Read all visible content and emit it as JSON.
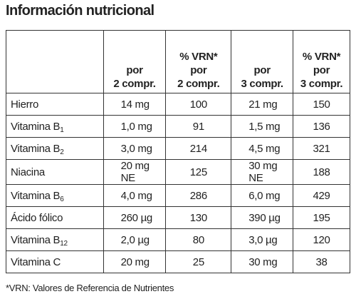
{
  "title": "Información nutricional",
  "table": {
    "header": [
      [
        "por",
        "2 compr."
      ],
      [
        "% VRN*",
        "por",
        "2 compr."
      ],
      [
        "por",
        "3 compr."
      ],
      [
        "% VRN*",
        "por",
        "3 compr."
      ]
    ],
    "rows": [
      [
        {
          "text": "Hierro"
        },
        "14 mg",
        "100",
        "21 mg",
        "150"
      ],
      [
        {
          "text": "Vitamina B",
          "sub": "1"
        },
        "1,0 mg",
        "91",
        "1,5 mg",
        "136"
      ],
      [
        {
          "text": "Vitamina B",
          "sub": "2"
        },
        "3,0 mg",
        "214",
        "4,5 mg",
        "321"
      ],
      [
        {
          "text": "Niacina"
        },
        "20 mg NE",
        "125",
        "30 mg NE",
        "188"
      ],
      [
        {
          "text": "Vitamina B",
          "sub": "6"
        },
        "4,0 mg",
        "286",
        "6,0 mg",
        "429"
      ],
      [
        {
          "text": "Ácido fólico"
        },
        "260 µg",
        "130",
        "390 µg",
        "195"
      ],
      [
        {
          "text": "Vitamina B",
          "sub": "12"
        },
        "2,0 µg",
        "80",
        "3,0 µg",
        "120"
      ],
      [
        {
          "text": "Vitamina C"
        },
        "20 mg",
        "25",
        "30 mg",
        "38"
      ]
    ]
  },
  "footnote": "*VRN: Valores de Referencia de Nutrientes"
}
